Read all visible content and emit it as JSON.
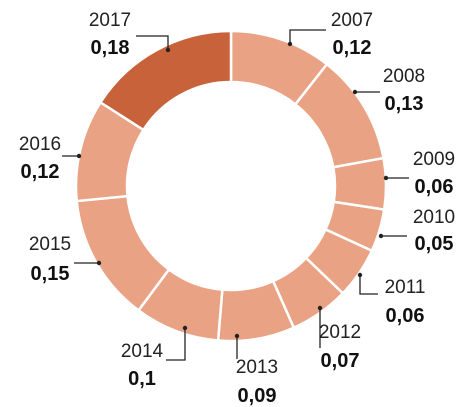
{
  "chart_data": {
    "type": "pie",
    "donut": true,
    "start_category": "2007",
    "direction": "clockwise",
    "categories": [
      "2007",
      "2008",
      "2009",
      "2010",
      "2011",
      "2012",
      "2013",
      "2014",
      "2015",
      "2016",
      "2017"
    ],
    "values": [
      0.12,
      0.13,
      0.06,
      0.05,
      0.06,
      0.07,
      0.09,
      0.1,
      0.15,
      0.12,
      0.18
    ],
    "value_labels": [
      "0,12",
      "0,13",
      "0,06",
      "0,05",
      "0,06",
      "0,07",
      "0,09",
      "0,1",
      "0,15",
      "0,12",
      "0,18"
    ],
    "colors": {
      "default": "#e9a283",
      "highlight": "#c7623a",
      "highlight_category": "2017",
      "label_text": "#222222"
    },
    "title": "",
    "legend": "none"
  }
}
